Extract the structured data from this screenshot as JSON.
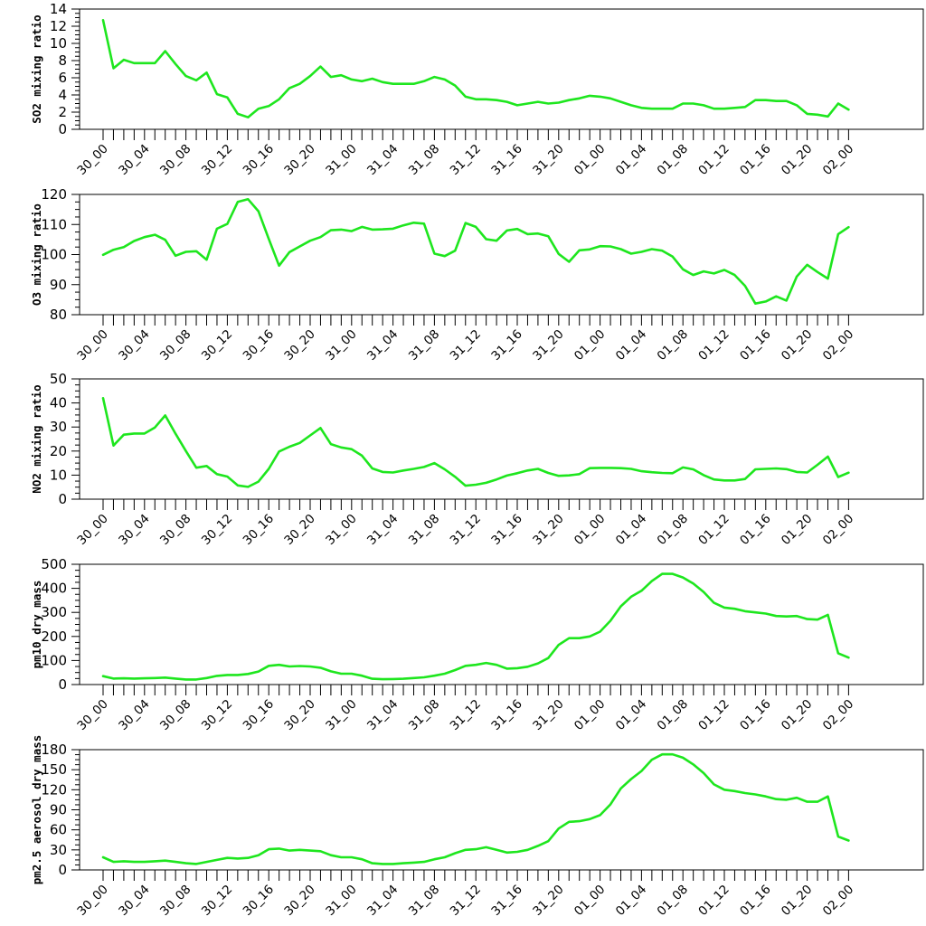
{
  "chart_data": [
    {
      "type": "line",
      "ylabel": "SO2 mixing ratio",
      "ylim": [
        0,
        14
      ],
      "yticks": [
        0,
        2,
        4,
        6,
        8,
        10,
        12,
        14
      ],
      "xtick_labels": [
        "30_00",
        "30_04",
        "30_08",
        "30_12",
        "30_16",
        "30_20",
        "31_00",
        "31_04",
        "31_08",
        "31_12",
        "31_16",
        "31_20",
        "01_00",
        "01_04",
        "01_08",
        "01_12",
        "01_16",
        "01_20",
        "02_00"
      ],
      "line_color": "#1ee61e",
      "series": [
        {
          "values": [
            12.7,
            7.1,
            8.1,
            7.7,
            7.7,
            7.7,
            9.1,
            7.6,
            6.2,
            5.7,
            6.6,
            4.1,
            3.7,
            1.8,
            1.4,
            2.4,
            2.7,
            3.5,
            4.8,
            5.3,
            6.2,
            7.3,
            6.1,
            6.3,
            5.8,
            5.6,
            5.9,
            5.5,
            5.3,
            5.3,
            5.3,
            5.6,
            6.1,
            5.8,
            5.1,
            3.8,
            3.5,
            3.5,
            3.4,
            3.2,
            2.8,
            3.0,
            3.2,
            3.0,
            3.1,
            3.4,
            3.6,
            3.9,
            3.8,
            3.6,
            3.2,
            2.8,
            2.5,
            2.4,
            2.4,
            2.4,
            3.0,
            3.0,
            2.8,
            2.4,
            2.4,
            2.5,
            2.6,
            3.4,
            3.4,
            3.3,
            3.3,
            2.8,
            1.8,
            1.7,
            1.5,
            3.0,
            2.3
          ]
        }
      ]
    },
    {
      "type": "line",
      "ylabel": "O3 mixing ratio",
      "ylim": [
        80,
        120
      ],
      "yticks": [
        80,
        90,
        100,
        110,
        120
      ],
      "xtick_labels": [
        "30_00",
        "30_04",
        "30_08",
        "30_12",
        "30_16",
        "30_20",
        "31_00",
        "31_04",
        "31_08",
        "31_12",
        "31_16",
        "31_20",
        "01_00",
        "01_04",
        "01_08",
        "01_12",
        "01_16",
        "01_20",
        "02_00"
      ],
      "line_color": "#1ee61e",
      "series": [
        {
          "values": [
            99.9,
            101.6,
            102.5,
            104.5,
            105.8,
            106.6,
            104.9,
            99.6,
            100.9,
            101.1,
            98.3,
            108.6,
            110.2,
            117.5,
            118.4,
            114.4,
            105.2,
            96.3,
            100.8,
            102.7,
            104.6,
            105.8,
            108.1,
            108.3,
            107.8,
            109.2,
            108.3,
            108.4,
            108.6,
            109.7,
            110.6,
            110.3,
            100.3,
            99.5,
            101.3,
            110.5,
            109.2,
            105.1,
            104.6,
            108.0,
            108.5,
            106.8,
            107.0,
            106.1,
            100.2,
            97.6,
            101.4,
            101.7,
            102.8,
            102.7,
            101.8,
            100.3,
            100.9,
            101.8,
            101.3,
            99.3,
            95.1,
            93.2,
            94.4,
            93.7,
            94.9,
            93.2,
            89.6,
            83.7,
            84.4,
            86.1,
            84.7,
            92.7,
            96.6,
            94.2,
            92.0,
            106.8,
            109.1
          ]
        }
      ]
    },
    {
      "type": "line",
      "ylabel": "NO2 mixing ratio",
      "ylim": [
        0,
        50
      ],
      "yticks": [
        0,
        10,
        20,
        30,
        40,
        50
      ],
      "xtick_labels": [
        "30_00",
        "30_04",
        "30_08",
        "30_12",
        "30_16",
        "30_20",
        "31_00",
        "31_04",
        "31_08",
        "31_12",
        "31_16",
        "31_20",
        "01_00",
        "01_04",
        "01_08",
        "01_12",
        "01_16",
        "01_20",
        "02_00"
      ],
      "line_color": "#1ee61e",
      "series": [
        {
          "values": [
            42.0,
            22.3,
            26.8,
            27.3,
            27.3,
            29.8,
            34.8,
            27.2,
            20.0,
            13.1,
            13.8,
            10.4,
            9.4,
            5.7,
            5.1,
            7.3,
            12.6,
            19.8,
            21.8,
            23.4,
            26.5,
            29.6,
            22.9,
            21.5,
            20.8,
            18.1,
            12.8,
            11.3,
            11.1,
            11.9,
            12.6,
            13.4,
            15.0,
            12.4,
            9.3,
            5.6,
            6.0,
            6.8,
            8.2,
            9.8,
            10.8,
            11.9,
            12.6,
            10.9,
            9.7,
            9.9,
            10.4,
            12.9,
            13.0,
            13.0,
            12.9,
            12.6,
            11.6,
            11.2,
            10.9,
            10.8,
            13.2,
            12.4,
            10.0,
            8.2,
            7.8,
            7.8,
            8.4,
            12.4,
            12.6,
            12.8,
            12.5,
            11.3,
            11.1,
            14.3,
            17.7,
            9.2,
            11.0
          ]
        }
      ]
    },
    {
      "type": "line",
      "ylabel": "pm10 dry mass",
      "ylim": [
        0,
        500
      ],
      "yticks": [
        0,
        100,
        200,
        300,
        400,
        500
      ],
      "xtick_labels": [
        "30_00",
        "30_04",
        "30_08",
        "30_12",
        "30_16",
        "30_20",
        "31_00",
        "31_04",
        "31_08",
        "31_12",
        "31_16",
        "31_20",
        "01_00",
        "01_04",
        "01_08",
        "01_12",
        "01_16",
        "01_20",
        "02_00"
      ],
      "line_color": "#1ee61e",
      "series": [
        {
          "values": [
            35,
            25,
            26,
            25,
            26,
            27,
            29,
            25,
            21,
            21,
            27,
            36,
            40,
            40,
            44,
            54,
            78,
            82,
            75,
            77,
            75,
            70,
            55,
            45,
            45,
            37,
            24,
            22,
            23,
            24,
            27,
            30,
            37,
            45,
            60,
            78,
            82,
            90,
            82,
            66,
            68,
            74,
            88,
            110,
            165,
            193,
            193,
            200,
            220,
            265,
            325,
            365,
            390,
            430,
            460,
            460,
            445,
            420,
            385,
            340,
            320,
            315,
            305,
            300,
            295,
            285,
            283,
            285,
            272,
            270,
            290,
            130,
            112
          ]
        }
      ]
    },
    {
      "type": "line",
      "ylabel": "pm2.5 aerosol dry mass",
      "ylim": [
        0,
        180
      ],
      "yticks": [
        0,
        30,
        60,
        90,
        120,
        150,
        180
      ],
      "xtick_labels": [
        "30_00",
        "30_04",
        "30_08",
        "30_12",
        "30_16",
        "30_20",
        "31_00",
        "31_04",
        "31_08",
        "31_12",
        "31_16",
        "31_20",
        "01_00",
        "01_04",
        "01_08",
        "01_12",
        "01_16",
        "01_20",
        "02_00"
      ],
      "line_color": "#1ee61e",
      "series": [
        {
          "values": [
            19,
            12,
            13,
            12,
            12,
            13,
            14,
            12,
            10,
            9,
            12,
            15,
            18,
            17,
            18,
            22,
            31,
            32,
            29,
            30,
            29,
            28,
            22,
            19,
            19,
            16,
            10,
            9,
            9,
            10,
            11,
            12,
            16,
            19,
            25,
            30,
            31,
            34,
            30,
            26,
            27,
            30,
            36,
            43,
            62,
            72,
            73,
            76,
            82,
            98,
            122,
            136,
            148,
            165,
            173,
            173,
            168,
            158,
            145,
            128,
            120,
            118,
            115,
            113,
            110,
            106,
            105,
            108,
            102,
            102,
            110,
            50,
            44
          ]
        }
      ]
    }
  ]
}
